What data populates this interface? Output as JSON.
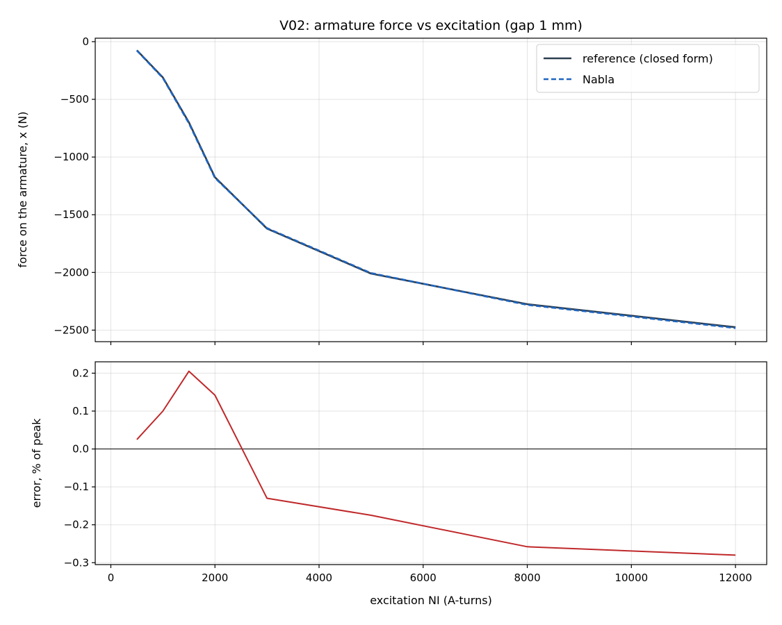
{
  "chart_data": [
    {
      "type": "line",
      "title": "V02: armature force vs excitation (gap 1 mm)",
      "xlabel": "",
      "ylabel": "force on the armature, x (N)",
      "xlim": [
        -300,
        12600
      ],
      "ylim": [
        -2600,
        30
      ],
      "x_ticks": [
        0,
        2000,
        4000,
        6000,
        8000,
        10000,
        12000
      ],
      "y_ticks": [
        0,
        -500,
        -1000,
        -1500,
        -2000,
        -2500
      ],
      "y_tick_labels": [
        "0",
        "−500",
        "−1000",
        "−1500",
        "−2000",
        "−2500"
      ],
      "grid": true,
      "legend": "top-right",
      "x": [
        500,
        1000,
        1500,
        2000,
        3000,
        5000,
        8000,
        12000
      ],
      "series": [
        {
          "name": "reference (closed form)",
          "color": "#2c3e50",
          "style": "solid",
          "values": [
            -75,
            -310,
            -700,
            -1175,
            -1620,
            -2010,
            -2275,
            -2475
          ]
        },
        {
          "name": "Nabla",
          "color": "#1f65c0",
          "style": "dashed",
          "values": [
            -77,
            -315,
            -708,
            -1181,
            -1616,
            -2006,
            -2281,
            -2482
          ]
        }
      ]
    },
    {
      "type": "line",
      "title": "",
      "xlabel": "excitation NI (A-turns)",
      "ylabel": "error, % of peak",
      "xlim": [
        -300,
        12600
      ],
      "ylim": [
        -0.305,
        0.23
      ],
      "x_ticks": [
        0,
        2000,
        4000,
        6000,
        8000,
        10000,
        12000
      ],
      "x_tick_labels": [
        "0",
        "2000",
        "4000",
        "6000",
        "8000",
        "10000",
        "12000"
      ],
      "y_ticks": [
        0.2,
        0.1,
        0.0,
        -0.1,
        -0.2,
        -0.3
      ],
      "y_tick_labels": [
        "0.2",
        "0.1",
        "0.0",
        "−0.1",
        "−0.2",
        "−0.3"
      ],
      "grid": true,
      "zero_line": true,
      "x": [
        500,
        1000,
        1500,
        2000,
        3000,
        5000,
        8000,
        12000
      ],
      "series": [
        {
          "name": "",
          "color": "#c0282a",
          "style": "solid",
          "values": [
            0.025,
            0.1,
            0.205,
            0.142,
            -0.13,
            -0.175,
            -0.258,
            -0.28
          ]
        }
      ]
    }
  ]
}
